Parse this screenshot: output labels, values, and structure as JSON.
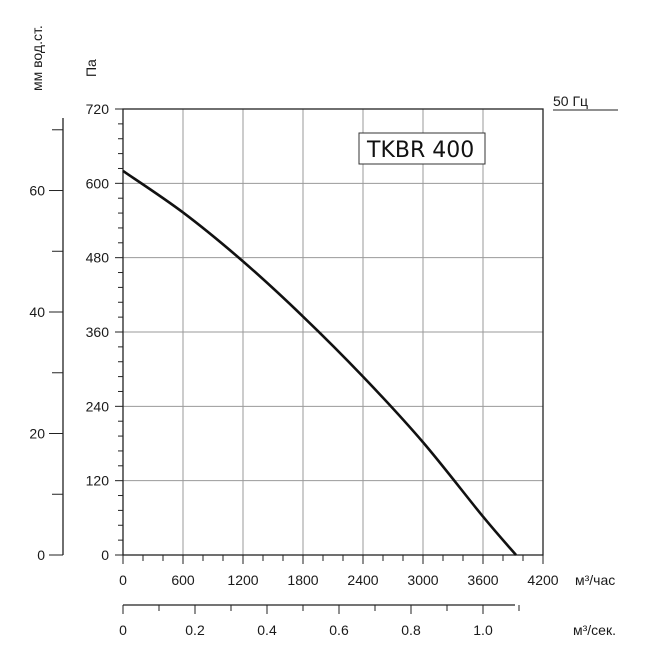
{
  "chart_data": {
    "type": "line",
    "model_label": "TKBR 400",
    "frequency_label": "50 Гц",
    "y_label_pa": "Па",
    "y_label_mm": "мм вод.ст.",
    "x_unit_hour": "м³/час",
    "x_unit_sec": "м³/сек.",
    "x_ticks_hour": [
      "0",
      "600",
      "1200",
      "1800",
      "2400",
      "3000",
      "3600",
      "4200"
    ],
    "x_ticks_sec": [
      "0",
      "0.2",
      "0.4",
      "0.6",
      "0.8",
      "1.0"
    ],
    "y_ticks_pa": [
      "0",
      "120",
      "240",
      "360",
      "480",
      "600",
      "720"
    ],
    "y_ticks_mm": [
      "0",
      "20",
      "40",
      "60"
    ],
    "xlim": [
      0,
      4200
    ],
    "ylim": [
      0,
      720
    ],
    "grid": true,
    "series": [
      {
        "x": [
          0,
          600,
          1200,
          1800,
          2400,
          3000,
          3600,
          3930
        ],
        "y": [
          620,
          553,
          474,
          385,
          288,
          182,
          62,
          0
        ]
      }
    ]
  }
}
